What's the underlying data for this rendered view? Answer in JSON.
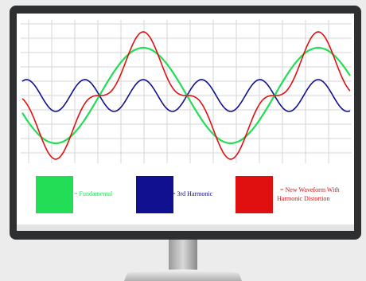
{
  "legend": [
    {
      "label": "= Fundamental",
      "color": "#22dd55"
    },
    {
      "label": "= 3rd Harmonic",
      "color": "#101090"
    },
    {
      "lines": [
        "= New Waveform With",
        "Harmonic Distortion"
      ],
      "color": "#e01010"
    }
  ]
}
